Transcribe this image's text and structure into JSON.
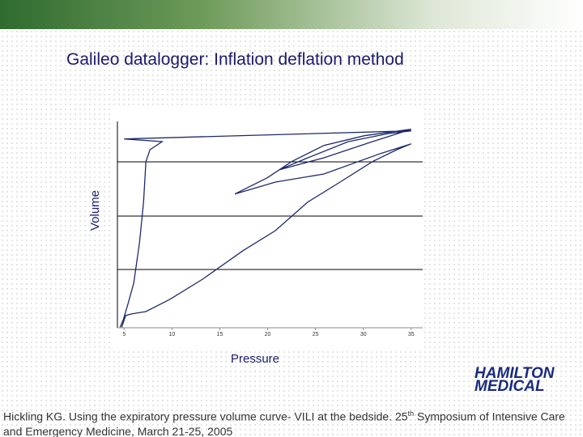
{
  "chart_data": {
    "type": "line",
    "title": "Galileo datalogger: Inflation deflation method",
    "xlabel": "Pressure",
    "ylabel": "Volume",
    "xlim": [
      4.3,
      36.2
    ],
    "ylim": [
      -0.2,
      4
    ],
    "xticks": [
      5,
      10,
      15,
      20,
      25,
      30,
      35
    ],
    "series": [
      {
        "color": "#1c2a6b",
        "x": [
          4.75,
          5.17,
          5.85,
          7.28,
          9.82,
          13.2,
          17.43,
          20.81,
          24.19,
          27.57,
          30.95,
          33.49,
          35.0,
          31.8,
          25.88,
          20.81,
          16.58,
          19.96,
          22.5,
          25.88,
          30.11,
          35.0,
          30.95,
          25.88,
          21.23,
          24.19,
          28.42,
          32.64,
          35.0,
          5.0,
          8.97,
          7.7,
          7.28,
          7.03,
          6.61,
          6.01,
          5.42,
          4.92,
          4.58
        ],
        "values": [
          -0.07,
          0.15,
          0.18,
          0.22,
          0.45,
          0.82,
          1.35,
          1.72,
          2.25,
          2.62,
          3.0,
          3.22,
          3.33,
          3.15,
          2.77,
          2.62,
          2.4,
          2.7,
          3.0,
          3.3,
          3.48,
          3.6,
          3.37,
          3.07,
          2.85,
          3.07,
          3.37,
          3.52,
          3.57,
          3.42,
          3.37,
          3.22,
          3.0,
          2.25,
          1.5,
          0.75,
          0.37,
          0.07,
          -0.07
        ]
      }
    ]
  },
  "logo": {
    "line1": "HAMILTON",
    "line2": "MEDICAL"
  },
  "footer": {
    "before": "Hickling KG. Using the expiratory pressure volume curve- VILI at the bedside. 25",
    "sup": "th",
    "after": " Symposium of Intensive Care and Emergency Medicine, March 21-25, 2005"
  }
}
